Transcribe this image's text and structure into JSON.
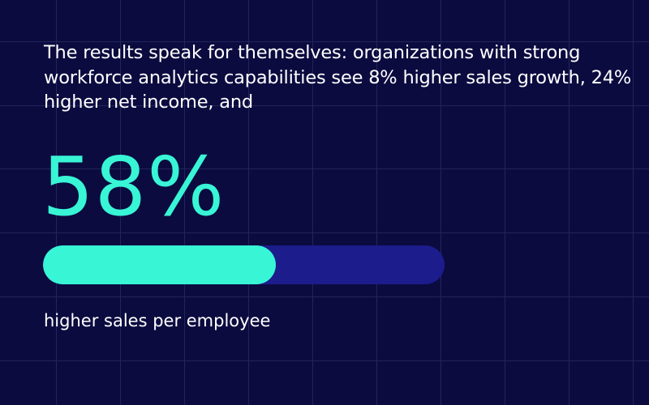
{
  "headline": "The results speak for themselves: organizations with strong workforce analytics capabilities see 8% higher sales growth, 24% higher net income, and",
  "stat": {
    "value_label": "58%",
    "progress_fraction": 0.58,
    "caption": "higher sales per employee"
  },
  "colors": {
    "background": "#0b0b40",
    "accent": "#38f5d6",
    "track": "#1c1c8c",
    "grid": "#22245a",
    "text": "#ffffff"
  }
}
